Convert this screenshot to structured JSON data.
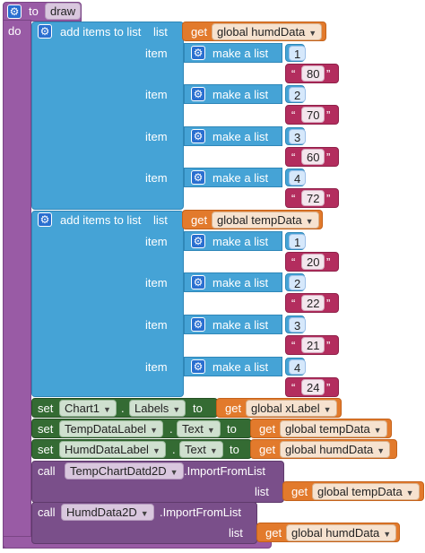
{
  "procedure": {
    "to_label": "to",
    "name": "draw",
    "do_label": "do"
  },
  "keywords": {
    "add_items": "add items to list",
    "list": "list",
    "item": "item",
    "make_list": "make a list",
    "get": "get",
    "set": "set",
    "to": "to",
    "dot": ".",
    "call": "call",
    "import": ".ImportFromList",
    "quote_open": "“",
    "quote_close": "”"
  },
  "add_blocks": [
    {
      "list_var": "global humdData",
      "items": [
        {
          "num": "1",
          "val": "80"
        },
        {
          "num": "2",
          "val": "70"
        },
        {
          "num": "3",
          "val": "60"
        },
        {
          "num": "4",
          "val": "72"
        }
      ]
    },
    {
      "list_var": "global tempData",
      "items": [
        {
          "num": "1",
          "val": "20"
        },
        {
          "num": "2",
          "val": "22"
        },
        {
          "num": "3",
          "val": "21"
        },
        {
          "num": "4",
          "val": "24"
        }
      ]
    }
  ],
  "set_blocks": [
    {
      "component": "Chart1",
      "property": "Labels",
      "value": "global xLabel"
    },
    {
      "component": "TempDataLabel",
      "property": "Text",
      "value": "global tempData"
    },
    {
      "component": "HumdDataLabel",
      "property": "Text",
      "value": "global humdData"
    }
  ],
  "call_blocks": [
    {
      "component": "TempChartDatd2D",
      "list_var": "global tempData"
    },
    {
      "component": "HumdData2D",
      "list_var": "global humdData"
    }
  ],
  "colors": {
    "procedure": "#995ba5",
    "list": "#45a3d6",
    "text": "#b32d5e",
    "get": "#e27a2c",
    "set": "#346b33",
    "call": "#7a4f8a"
  },
  "icons": [
    "gear-icon",
    "dropdown-caret-icon"
  ]
}
